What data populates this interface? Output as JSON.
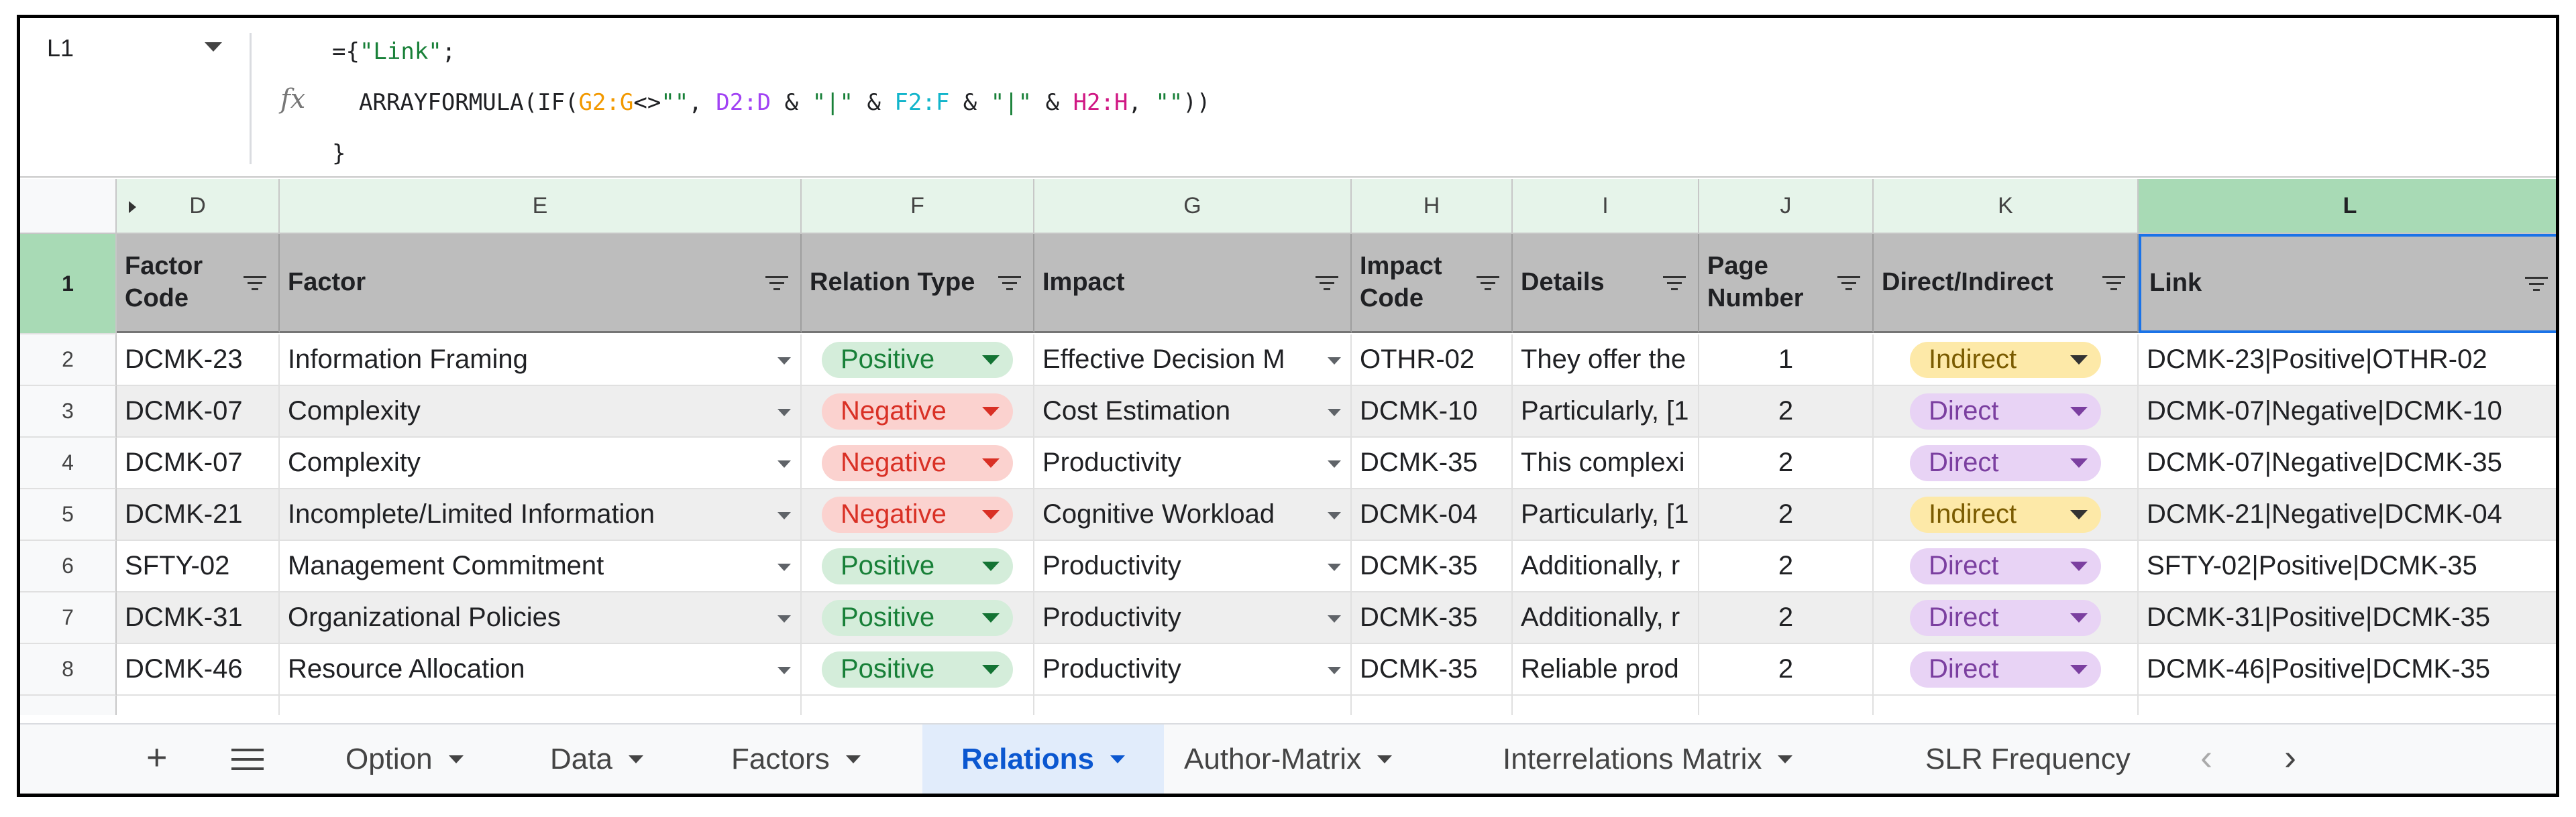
{
  "formula_bar": {
    "cell_ref": "L1",
    "fx": "fx",
    "line1_prefix": "={",
    "line1_string": "\"Link\"",
    "line1_suffix": ";",
    "line2": [
      {
        "t": "ARRAYFORMULA(IF(",
        "c": ""
      },
      {
        "t": "G2:G",
        "c": "c-orange"
      },
      {
        "t": "<>",
        "c": ""
      },
      {
        "t": "\"\"",
        "c": "c-str"
      },
      {
        "t": ", ",
        "c": ""
      },
      {
        "t": "D2:D",
        "c": "c-purple"
      },
      {
        "t": " & ",
        "c": ""
      },
      {
        "t": "\"|\"",
        "c": "c-str"
      },
      {
        "t": " & ",
        "c": ""
      },
      {
        "t": "F2:F",
        "c": "c-teal"
      },
      {
        "t": " & ",
        "c": ""
      },
      {
        "t": "\"|\"",
        "c": "c-str"
      },
      {
        "t": " & ",
        "c": ""
      },
      {
        "t": "H2:H",
        "c": "c-magenta"
      },
      {
        "t": ", ",
        "c": ""
      },
      {
        "t": "\"\"",
        "c": "c-str"
      },
      {
        "t": "))",
        "c": ""
      }
    ],
    "line3": "}"
  },
  "columns": [
    "D",
    "E",
    "F",
    "G",
    "H",
    "I",
    "J",
    "K",
    "L"
  ],
  "selected_column": "L",
  "row_numbers": [
    "1",
    "2",
    "3",
    "4",
    "5",
    "6",
    "7",
    "8"
  ],
  "headers": {
    "D": "Factor Code",
    "E": "Factor",
    "F": "Relation Type",
    "G": "Impact",
    "H": "Impact Code",
    "I": "Details",
    "J": "Page Number",
    "K": "Direct/Indirect",
    "L": "Link"
  },
  "rows": [
    {
      "factor_code": "DCMK-23",
      "factor": "Information Framing",
      "relation": "Positive",
      "impact": "Effective Decision M",
      "impact_code": "OTHR-02",
      "details": "They offer the",
      "page": "1",
      "direct": "Indirect",
      "link": "DCMK-23|Positive|OTHR-02"
    },
    {
      "factor_code": "DCMK-07",
      "factor": "Complexity",
      "relation": "Negative",
      "impact": "Cost Estimation",
      "impact_code": "DCMK-10",
      "details": "Particularly, [1",
      "page": "2",
      "direct": "Direct",
      "link": "DCMK-07|Negative|DCMK-10"
    },
    {
      "factor_code": "DCMK-07",
      "factor": "Complexity",
      "relation": "Negative",
      "impact": "Productivity",
      "impact_code": "DCMK-35",
      "details": "This complexi",
      "page": "2",
      "direct": "Direct",
      "link": "DCMK-07|Negative|DCMK-35"
    },
    {
      "factor_code": "DCMK-21",
      "factor": "Incomplete/Limited Information",
      "relation": "Negative",
      "impact": "Cognitive Workload",
      "impact_code": "DCMK-04",
      "details": "Particularly, [1",
      "page": "2",
      "direct": "Indirect",
      "link": "DCMK-21|Negative|DCMK-04"
    },
    {
      "factor_code": "SFTY-02",
      "factor": "Management Commitment",
      "relation": "Positive",
      "impact": "Productivity",
      "impact_code": "DCMK-35",
      "details": "Additionally, r",
      "page": "2",
      "direct": "Direct",
      "link": "SFTY-02|Positive|DCMK-35"
    },
    {
      "factor_code": "DCMK-31",
      "factor": "Organizational Policies",
      "relation": "Positive",
      "impact": "Productivity",
      "impact_code": "DCMK-35",
      "details": "Additionally, r",
      "page": "2",
      "direct": "Direct",
      "link": "DCMK-31|Positive|DCMK-35"
    },
    {
      "factor_code": "DCMK-46",
      "factor": "Resource Allocation",
      "relation": "Positive",
      "impact": "Productivity",
      "impact_code": "DCMK-35",
      "details": "Reliable prod",
      "page": "2",
      "direct": "Direct",
      "link": "DCMK-46|Positive|DCMK-35"
    }
  ],
  "tabs": {
    "add": "+",
    "items": [
      "Option",
      "Data",
      "Factors",
      "Relations",
      "Author-Matrix",
      "Interrelations Matrix",
      "SLR Frequency"
    ],
    "active": "Relations",
    "nav_left": "‹",
    "nav_right": "›"
  },
  "colors": {
    "positive_bg": "#d4edda",
    "negative_bg": "#fbd2cf",
    "indirect_bg": "#fde9a8",
    "direct_bg": "#e8d3f5",
    "header_bg": "#bdbdbd",
    "column_header_bg": "#e6f4ea",
    "active_tab_text": "#0b57d0"
  }
}
